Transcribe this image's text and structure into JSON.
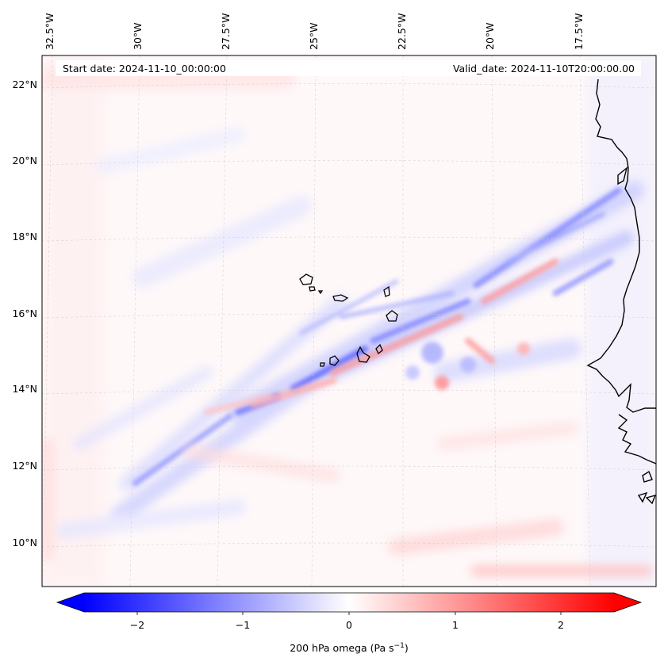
{
  "map": {
    "start_label": "Start date: 2024-11-10_00:00:00",
    "valid_label": "Valid_date: 2024-11-10T20:00:00.00",
    "lon_labels": [
      "32.5°W",
      "30°W",
      "27.5°W",
      "25°W",
      "22.5°W",
      "20°W",
      "17.5°W"
    ],
    "lat_labels": [
      "22°N",
      "20°N",
      "18°N",
      "16°N",
      "14°N",
      "12°N",
      "10°N"
    ],
    "extent": {
      "lon_min": -33.2,
      "lon_max": -15.9,
      "lat_min": 8.9,
      "lat_max": 22.8
    },
    "colors": {
      "negative": "#0000ff",
      "zero": "#ffffff",
      "positive": "#ff0000",
      "coast": "#000000",
      "grid": "#cccccc"
    }
  },
  "colorbar": {
    "label": "200 hPa omega (Pa s",
    "label_sup": "−1",
    "label_close": ")",
    "ticks": [
      "−2",
      "−1",
      "0",
      "1",
      "2"
    ],
    "range": [
      -2.6,
      2.6
    ]
  }
}
